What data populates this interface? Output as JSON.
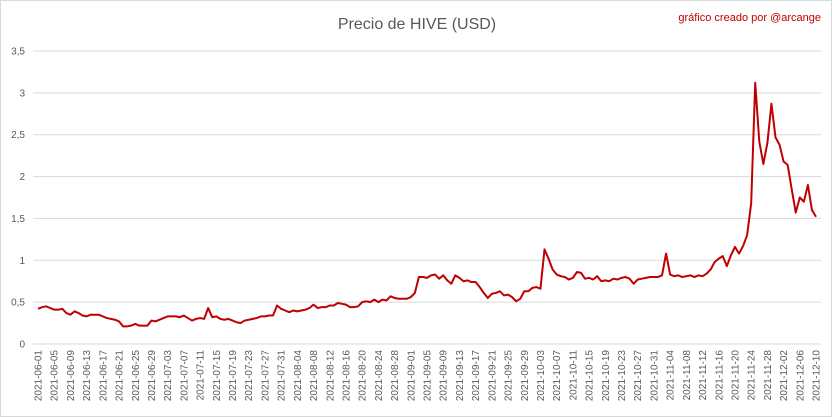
{
  "chart_data": {
    "type": "line",
    "title": "Precio de HIVE (USD)",
    "annotation": "gráfico creado por @arcange",
    "categories": [
      "2021-06-01",
      null,
      null,
      null,
      "2021-06-05",
      null,
      null,
      null,
      "2021-06-09",
      null,
      null,
      null,
      "2021-06-13",
      null,
      null,
      null,
      "2021-06-17",
      null,
      null,
      null,
      "2021-06-21",
      null,
      null,
      null,
      "2021-06-25",
      null,
      null,
      null,
      "2021-06-29",
      null,
      null,
      null,
      "2021-07-03",
      null,
      null,
      null,
      "2021-07-07",
      null,
      null,
      null,
      "2021-07-11",
      null,
      null,
      null,
      "2021-07-15",
      null,
      null,
      null,
      "2021-07-19",
      null,
      null,
      null,
      "2021-07-23",
      null,
      null,
      null,
      "2021-07-27",
      null,
      null,
      null,
      "2021-07-31",
      null,
      null,
      null,
      "2021-08-04",
      null,
      null,
      null,
      "2021-08-08",
      null,
      null,
      null,
      "2021-08-12",
      null,
      null,
      null,
      "2021-08-16",
      null,
      null,
      null,
      "2021-08-20",
      null,
      null,
      null,
      "2021-08-24",
      null,
      null,
      null,
      "2021-08-28",
      null,
      null,
      null,
      "2021-09-01",
      null,
      null,
      null,
      "2021-09-05",
      null,
      null,
      null,
      "2021-09-09",
      null,
      null,
      null,
      "2021-09-13",
      null,
      null,
      null,
      "2021-09-17",
      null,
      null,
      null,
      "2021-09-21",
      null,
      null,
      null,
      "2021-09-25",
      null,
      null,
      null,
      "2021-09-29",
      null,
      null,
      null,
      "2021-10-03",
      null,
      null,
      null,
      "2021-10-07",
      null,
      null,
      null,
      "2021-10-11",
      null,
      null,
      null,
      "2021-10-15",
      null,
      null,
      null,
      "2021-10-19",
      null,
      null,
      null,
      "2021-10-23",
      null,
      null,
      null,
      "2021-10-27",
      null,
      null,
      null,
      "2021-10-31",
      null,
      null,
      null,
      "2021-11-04",
      null,
      null,
      null,
      "2021-11-08",
      null,
      null,
      null,
      "2021-11-12",
      null,
      null,
      null,
      "2021-11-16",
      null,
      null,
      null,
      "2021-11-20",
      null,
      null,
      null,
      "2021-11-24",
      null,
      null,
      null,
      "2021-11-28",
      null,
      null,
      null,
      "2021-12-02",
      null,
      null,
      null,
      "2021-12-06",
      null,
      null,
      null,
      "2021-12-10"
    ],
    "values": [
      0.42,
      0.44,
      0.45,
      0.43,
      0.41,
      0.41,
      0.42,
      0.37,
      0.35,
      0.39,
      0.37,
      0.34,
      0.33,
      0.35,
      0.35,
      0.35,
      0.33,
      0.31,
      0.3,
      0.29,
      0.27,
      0.21,
      0.21,
      0.22,
      0.24,
      0.22,
      0.22,
      0.22,
      0.28,
      0.27,
      0.29,
      0.31,
      0.33,
      0.33,
      0.33,
      0.32,
      0.34,
      0.31,
      0.28,
      0.3,
      0.31,
      0.3,
      0.43,
      0.32,
      0.33,
      0.3,
      0.29,
      0.3,
      0.28,
      0.26,
      0.25,
      0.28,
      0.29,
      0.3,
      0.31,
      0.33,
      0.33,
      0.34,
      0.34,
      0.46,
      0.42,
      0.4,
      0.38,
      0.4,
      0.39,
      0.4,
      0.41,
      0.43,
      0.47,
      0.43,
      0.44,
      0.44,
      0.46,
      0.46,
      0.49,
      0.48,
      0.47,
      0.44,
      0.44,
      0.45,
      0.5,
      0.51,
      0.5,
      0.53,
      0.5,
      0.53,
      0.52,
      0.57,
      0.55,
      0.54,
      0.54,
      0.54,
      0.56,
      0.61,
      0.8,
      0.8,
      0.79,
      0.82,
      0.83,
      0.78,
      0.82,
      0.76,
      0.72,
      0.82,
      0.79,
      0.75,
      0.76,
      0.74,
      0.74,
      0.68,
      0.61,
      0.55,
      0.6,
      0.61,
      0.63,
      0.58,
      0.59,
      0.56,
      0.51,
      0.54,
      0.63,
      0.63,
      0.67,
      0.68,
      0.66,
      1.13,
      1.02,
      0.89,
      0.83,
      0.81,
      0.8,
      0.77,
      0.79,
      0.86,
      0.85,
      0.78,
      0.79,
      0.77,
      0.81,
      0.75,
      0.76,
      0.75,
      0.78,
      0.77,
      0.79,
      0.8,
      0.78,
      0.72,
      0.77,
      0.78,
      0.79,
      0.8,
      0.8,
      0.8,
      0.82,
      1.08,
      0.83,
      0.81,
      0.82,
      0.8,
      0.81,
      0.82,
      0.8,
      0.82,
      0.81,
      0.84,
      0.89,
      0.98,
      1.02,
      1.05,
      0.93,
      1.06,
      1.16,
      1.08,
      1.17,
      1.3,
      1.68,
      3.12,
      2.42,
      2.15,
      2.4,
      2.87,
      2.47,
      2.38,
      2.18,
      2.14,
      1.85,
      1.57,
      1.75,
      1.7,
      1.9,
      1.6,
      1.52
    ],
    "color": "#c00000",
    "ylim": [
      0,
      3.5
    ],
    "yticks": [
      0,
      {
        "value": 0.5,
        "label": "0,5"
      },
      1,
      {
        "value": 1.5,
        "label": "1,5"
      },
      2,
      {
        "value": 2.5,
        "label": "2,5"
      },
      3,
      {
        "value": 3.5,
        "label": "3,5"
      }
    ],
    "grid": true
  }
}
